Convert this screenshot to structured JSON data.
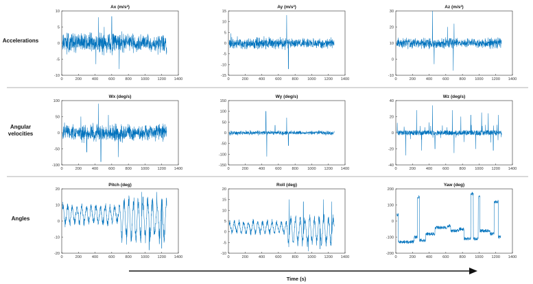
{
  "figure": {
    "row_labels": [
      [
        "Accelerations"
      ],
      [
        "Angular",
        "velocities"
      ],
      [
        "Angles"
      ]
    ],
    "time_axis_label": "Time (s)",
    "signal_color": "#0072BD",
    "axis_color": "#262626",
    "separator_color": "#999999"
  },
  "chart_data": [
    {
      "type": "line",
      "title": "Ax (m/s²)",
      "xlim": [
        0,
        1400
      ],
      "ylim": [
        -10,
        10
      ],
      "xticks": [
        "0",
        "200",
        "400",
        "600",
        "800",
        "1000",
        "1200",
        "1400"
      ],
      "yticks": [
        "-10",
        "-5",
        "0",
        "5",
        "10"
      ],
      "signal": {
        "end": 1260,
        "base": 0,
        "amplitude": 3,
        "style": "noise",
        "spikes": [
          [
            440,
            8
          ],
          [
            690,
            -8
          ],
          [
            600,
            8.3
          ],
          [
            410,
            -6.5
          ],
          [
            510,
            5
          ]
        ]
      }
    },
    {
      "type": "line",
      "title": "Ay (m/s²)",
      "xlim": [
        0,
        1400
      ],
      "ylim": [
        -15,
        15
      ],
      "xticks": [
        "0",
        "200",
        "400",
        "600",
        "800",
        "1000",
        "1200",
        "1400"
      ],
      "yticks": [
        "-15",
        "-10",
        "-5",
        "0",
        "5",
        "10",
        "15"
      ],
      "signal": {
        "end": 1270,
        "base": 0,
        "amplitude": 2.5,
        "style": "noise",
        "spikes": [
          [
            700,
            13
          ],
          [
            720,
            -12
          ],
          [
            30,
            4.5
          ]
        ]
      }
    },
    {
      "type": "line",
      "title": "Az (m/s²)",
      "xlim": [
        0,
        1400
      ],
      "ylim": [
        -10,
        30
      ],
      "xticks": [
        "0",
        "200",
        "400",
        "600",
        "800",
        "1000",
        "1200",
        "1400"
      ],
      "yticks": [
        "-10",
        "0",
        "10",
        "20",
        "30"
      ],
      "signal": {
        "end": 1270,
        "base": 10,
        "amplitude": 3,
        "style": "noise",
        "spikes": [
          [
            440,
            30
          ],
          [
            460,
            -3
          ],
          [
            690,
            -7
          ],
          [
            700,
            22
          ],
          [
            620,
            20
          ]
        ]
      }
    },
    {
      "type": "line",
      "title": "Wx (deg/s)",
      "xlim": [
        0,
        1400
      ],
      "ylim": [
        -100,
        100
      ],
      "xticks": [
        "0",
        "200",
        "400",
        "600",
        "800",
        "1000",
        "1200",
        "1400"
      ],
      "yticks": [
        "-100",
        "-50",
        "0",
        "50",
        "100"
      ],
      "signal": {
        "end": 1260,
        "base": 0,
        "amplitude": 25,
        "style": "noise",
        "spikes": [
          [
            440,
            90
          ],
          [
            470,
            -90
          ],
          [
            560,
            55
          ],
          [
            300,
            -60
          ],
          [
            680,
            -75
          ],
          [
            230,
            50
          ]
        ]
      }
    },
    {
      "type": "line",
      "title": "Wy (deg/s)",
      "xlim": [
        0,
        1400
      ],
      "ylim": [
        -150,
        150
      ],
      "xticks": [
        "0",
        "200",
        "400",
        "600",
        "800",
        "1000",
        "1200",
        "1400"
      ],
      "yticks": [
        "-150",
        "-100",
        "-50",
        "0",
        "50",
        "100",
        "150"
      ],
      "signal": {
        "end": 1270,
        "base": 0,
        "amplitude": 10,
        "style": "noise",
        "spikes": [
          [
            450,
            100
          ],
          [
            460,
            -110
          ],
          [
            700,
            70
          ],
          [
            720,
            -60
          ],
          [
            560,
            35
          ]
        ]
      }
    },
    {
      "type": "line",
      "title": "Wz (deg/s)",
      "xlim": [
        0,
        1400
      ],
      "ylim": [
        -40,
        40
      ],
      "xticks": [
        "0",
        "200",
        "400",
        "600",
        "800",
        "1000",
        "1200",
        "1400"
      ],
      "yticks": [
        "-40",
        "-20",
        "0",
        "20",
        "40"
      ],
      "signal": {
        "end": 1270,
        "base": 0,
        "amplitude": 3,
        "style": "spiky",
        "spikes": [
          [
            120,
            -28
          ],
          [
            250,
            28
          ],
          [
            310,
            -22
          ],
          [
            440,
            34
          ],
          [
            470,
            -20
          ],
          [
            680,
            28
          ],
          [
            700,
            -25
          ],
          [
            780,
            20
          ],
          [
            900,
            22
          ],
          [
            960,
            -20
          ],
          [
            1030,
            25
          ],
          [
            1110,
            24
          ],
          [
            1170,
            -22
          ],
          [
            1230,
            22
          ]
        ]
      }
    },
    {
      "type": "line",
      "title": "Pitch (deg)",
      "xlim": [
        0,
        1400
      ],
      "ylim": [
        -20,
        20
      ],
      "xticks": [
        "0",
        "200",
        "400",
        "600",
        "800",
        "1000",
        "1200",
        "1400"
      ],
      "yticks": [
        "-20",
        "-10",
        "0",
        "10",
        "20"
      ],
      "signal": {
        "end": 1260,
        "base": 4,
        "amplitude": 6,
        "style": "oscillation",
        "spikes": [
          [
            960,
            18
          ],
          [
            1050,
            -18
          ],
          [
            1140,
            18
          ],
          [
            1200,
            -17
          ]
        ]
      }
    },
    {
      "type": "line",
      "title": "Roll (deg)",
      "xlim": [
        0,
        1400
      ],
      "ylim": [
        -10,
        20
      ],
      "xticks": [
        "0",
        "200",
        "400",
        "600",
        "800",
        "1000",
        "1200",
        "1400"
      ],
      "yticks": [
        "-10",
        "-5",
        "0",
        "5",
        "10",
        "15",
        "20"
      ],
      "signal": {
        "end": 1270,
        "base": 2,
        "amplitude": 3,
        "style": "oscillation",
        "spikes": [
          [
            730,
            15
          ],
          [
            900,
            14
          ],
          [
            960,
            -9
          ],
          [
            1140,
            15
          ],
          [
            1240,
            14
          ],
          [
            1100,
            -8
          ]
        ]
      }
    },
    {
      "type": "line",
      "title": "Yaw (deg)",
      "xlim": [
        0,
        1400
      ],
      "ylim": [
        -200,
        200
      ],
      "xticks": [
        "0",
        "200",
        "400",
        "600",
        "800",
        "1000",
        "1200",
        "1400"
      ],
      "yticks": [
        "-200",
        "-100",
        "0",
        "100",
        "200"
      ],
      "signal": {
        "end": 1260,
        "base": -60,
        "amplitude": 20,
        "style": "steps",
        "levels": [
          [
            0,
            40
          ],
          [
            30,
            -130
          ],
          [
            220,
            -100
          ],
          [
            260,
            150
          ],
          [
            285,
            -120
          ],
          [
            360,
            -80
          ],
          [
            470,
            -40
          ],
          [
            620,
            -30
          ],
          [
            660,
            -60
          ],
          [
            760,
            -50
          ],
          [
            820,
            -110
          ],
          [
            900,
            170
          ],
          [
            930,
            -110
          ],
          [
            990,
            150
          ],
          [
            1010,
            -60
          ],
          [
            1130,
            -80
          ],
          [
            1180,
            120
          ],
          [
            1230,
            -100
          ]
        ]
      }
    }
  ]
}
